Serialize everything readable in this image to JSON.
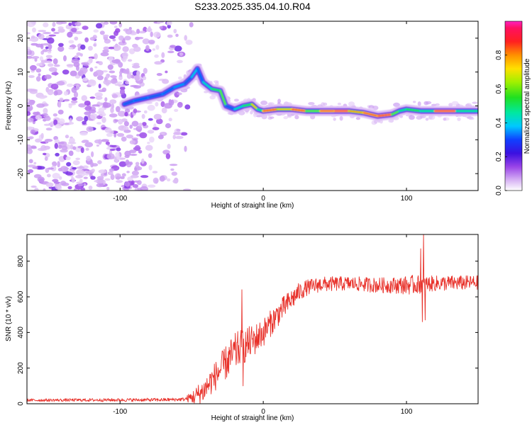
{
  "title": "S233.2025.335.04.10.R04",
  "colors": {
    "snr_line": "#e8312a",
    "axis": "#000000"
  },
  "chart_data": [
    {
      "type": "heatmap",
      "xlabel": "Height of straight line (km)",
      "ylabel": "Frequency (Hz)",
      "xlim": [
        -165,
        150
      ],
      "ylim": [
        -25,
        25
      ],
      "x_ticks": [
        -100,
        0,
        100
      ],
      "x_tick_labels": [
        "-100",
        "0",
        "100"
      ],
      "y_ticks": [
        20,
        10,
        0,
        -10,
        -20
      ],
      "y_tick_labels": [
        "20",
        "10",
        "0",
        "-10",
        "-20"
      ],
      "colorbar": {
        "label": "Normalized spectral amplitude",
        "range": [
          0,
          1
        ],
        "ticks": [
          0.0,
          0.2,
          0.4,
          0.6,
          0.8
        ],
        "tick_labels": [
          "0.0",
          "0.2",
          "0.4",
          "0.6",
          "0.8"
        ]
      },
      "ridge": [
        [
          -97,
          0.5
        ],
        [
          -90,
          1.5
        ],
        [
          -80,
          2.5
        ],
        [
          -70,
          3.5
        ],
        [
          -62,
          5.5
        ],
        [
          -55,
          6.5
        ],
        [
          -50,
          8.5
        ],
        [
          -46,
          11
        ],
        [
          -42,
          7
        ],
        [
          -36,
          5
        ],
        [
          -30,
          4.5
        ],
        [
          -26,
          0
        ],
        [
          -20,
          -1
        ],
        [
          -14,
          0
        ],
        [
          -8,
          0.5
        ],
        [
          -4,
          -1
        ],
        [
          0,
          -1.5
        ],
        [
          10,
          -1
        ],
        [
          20,
          -1
        ],
        [
          30,
          -1.5
        ],
        [
          40,
          -1.5
        ],
        [
          50,
          -1.5
        ],
        [
          60,
          -1.5
        ],
        [
          70,
          -2
        ],
        [
          80,
          -3
        ],
        [
          90,
          -2.5
        ],
        [
          95,
          -1.5
        ],
        [
          100,
          -1
        ],
        [
          110,
          -1.5
        ],
        [
          120,
          -1.5
        ],
        [
          135,
          -1.5
        ],
        [
          150,
          -1.5
        ]
      ],
      "ridge_amplitude": [
        0.25,
        0.3,
        0.25,
        0.3,
        0.35,
        0.25,
        0.4,
        0.3,
        0.45,
        0.55,
        0.6,
        0.25,
        0.45,
        0.55,
        0.75,
        0.5,
        0.9,
        0.75,
        0.9,
        0.6,
        0.9,
        0.95,
        0.8,
        0.9,
        0.95,
        0.6,
        0.5,
        0.55,
        0.5,
        0.95,
        0.5,
        0.35
      ]
    },
    {
      "type": "line",
      "xlabel": "Height of straight line (km)",
      "ylabel": "SNR (10 * v/v)",
      "xlim": [
        -165,
        150
      ],
      "ylim": [
        0,
        950
      ],
      "x_ticks": [
        -100,
        0,
        100
      ],
      "x_tick_labels": [
        "-100",
        "0",
        "100"
      ],
      "y_ticks": [
        0,
        200,
        400,
        600,
        800
      ],
      "y_tick_labels": [
        "0",
        "200",
        "400",
        "600",
        "800"
      ],
      "envelope": [
        [
          -165,
          20
        ],
        [
          -70,
          22
        ],
        [
          -55,
          25
        ],
        [
          -48,
          40
        ],
        [
          -42,
          70
        ],
        [
          -36,
          130
        ],
        [
          -30,
          190
        ],
        [
          -24,
          250
        ],
        [
          -18,
          300
        ],
        [
          -12,
          330
        ],
        [
          -6,
          360
        ],
        [
          0,
          400
        ],
        [
          6,
          460
        ],
        [
          12,
          520
        ],
        [
          18,
          570
        ],
        [
          24,
          620
        ],
        [
          30,
          650
        ],
        [
          40,
          670
        ],
        [
          60,
          675
        ],
        [
          80,
          665
        ],
        [
          100,
          665
        ],
        [
          120,
          675
        ],
        [
          150,
          680
        ]
      ],
      "noise_amp": [
        [
          -165,
          8
        ],
        [
          -55,
          10
        ],
        [
          -45,
          60
        ],
        [
          -20,
          110
        ],
        [
          0,
          80
        ],
        [
          20,
          60
        ],
        [
          30,
          45
        ],
        [
          60,
          40
        ],
        [
          90,
          45
        ],
        [
          105,
          55
        ],
        [
          115,
          45
        ],
        [
          150,
          40
        ]
      ],
      "spikes": [
        [
          -15,
          640
        ],
        [
          -14,
          100
        ],
        [
          110,
          870
        ],
        [
          111,
          460
        ],
        [
          112,
          950
        ],
        [
          113,
          470
        ]
      ]
    }
  ]
}
